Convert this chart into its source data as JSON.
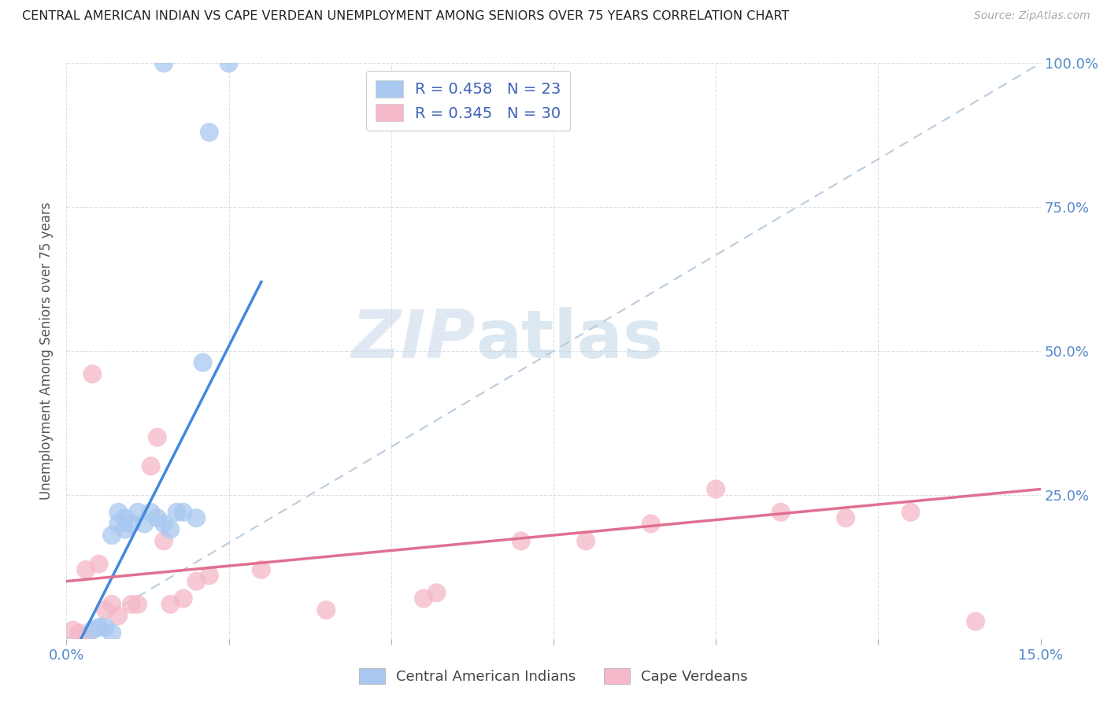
{
  "title": "CENTRAL AMERICAN INDIAN VS CAPE VERDEAN UNEMPLOYMENT AMONG SENIORS OVER 75 YEARS CORRELATION CHART",
  "source": "Source: ZipAtlas.com",
  "ylabel": "Unemployment Among Seniors over 75 years",
  "legend_label1": "R = 0.458   N = 23",
  "legend_label2": "R = 0.345   N = 30",
  "legend_label_bottom1": "Central American Indians",
  "legend_label_bottom2": "Cape Verdeans",
  "blue_color": "#a8c8f0",
  "pink_color": "#f4b8c8",
  "blue_line_color": "#4488dd",
  "pink_line_color": "#e07090",
  "ref_line_color": "#bbccdd",
  "x_min": 0.0,
  "x_max": 0.15,
  "y_min": 0.0,
  "y_max": 1.0,
  "blue_scatter": [
    [
      0.004,
      0.015
    ],
    [
      0.005,
      0.02
    ],
    [
      0.006,
      0.02
    ],
    [
      0.007,
      0.01
    ],
    [
      0.007,
      0.18
    ],
    [
      0.008,
      0.2
    ],
    [
      0.008,
      0.22
    ],
    [
      0.009,
      0.19
    ],
    [
      0.009,
      0.21
    ],
    [
      0.01,
      0.2
    ],
    [
      0.011,
      0.22
    ],
    [
      0.012,
      0.2
    ],
    [
      0.013,
      0.22
    ],
    [
      0.014,
      0.21
    ],
    [
      0.015,
      0.2
    ],
    [
      0.016,
      0.19
    ],
    [
      0.017,
      0.22
    ],
    [
      0.018,
      0.22
    ],
    [
      0.02,
      0.21
    ],
    [
      0.021,
      0.48
    ],
    [
      0.015,
      1.0
    ],
    [
      0.025,
      1.0
    ],
    [
      0.022,
      0.88
    ]
  ],
  "pink_scatter": [
    [
      0.001,
      0.015
    ],
    [
      0.002,
      0.01
    ],
    [
      0.003,
      0.005
    ],
    [
      0.003,
      0.12
    ],
    [
      0.004,
      0.46
    ],
    [
      0.005,
      0.13
    ],
    [
      0.006,
      0.05
    ],
    [
      0.007,
      0.06
    ],
    [
      0.008,
      0.04
    ],
    [
      0.01,
      0.06
    ],
    [
      0.011,
      0.06
    ],
    [
      0.013,
      0.3
    ],
    [
      0.014,
      0.35
    ],
    [
      0.015,
      0.17
    ],
    [
      0.016,
      0.06
    ],
    [
      0.018,
      0.07
    ],
    [
      0.02,
      0.1
    ],
    [
      0.022,
      0.11
    ],
    [
      0.03,
      0.12
    ],
    [
      0.04,
      0.05
    ],
    [
      0.055,
      0.07
    ],
    [
      0.057,
      0.08
    ],
    [
      0.07,
      0.17
    ],
    [
      0.08,
      0.17
    ],
    [
      0.09,
      0.2
    ],
    [
      0.1,
      0.26
    ],
    [
      0.11,
      0.22
    ],
    [
      0.12,
      0.21
    ],
    [
      0.13,
      0.22
    ],
    [
      0.14,
      0.03
    ]
  ],
  "blue_line_x": [
    0.0,
    0.03
  ],
  "blue_line_y": [
    -0.05,
    0.62
  ],
  "pink_line_x": [
    0.0,
    0.15
  ],
  "pink_line_y": [
    0.1,
    0.26
  ],
  "ref_line_x": [
    0.0,
    0.15
  ],
  "ref_line_y": [
    0.0,
    1.0
  ]
}
